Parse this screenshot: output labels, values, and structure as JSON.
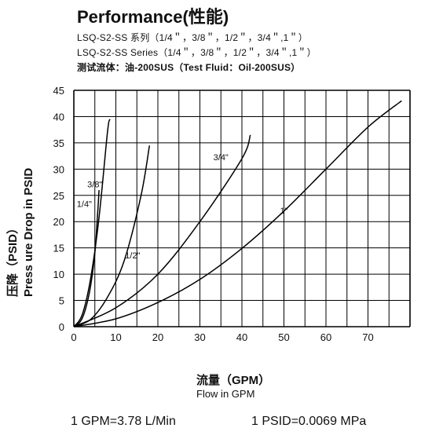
{
  "title": "Performance(性能)",
  "subtitle_lines": [
    "LSQ-S2-SS 系列（1/4＂，3/8＂，1/2＂，3/4＂,1＂）",
    "LSQ-S2-SS Series（1/4＂，3/8＂，1/2＂，3/4＂,1＂）",
    "测试流体：油-200SUS（Test Fluid：Oil-200SUS）"
  ],
  "y_axis_label": {
    "line1": "压降（PSID）",
    "line2": "Press ure Drop in PSID"
  },
  "x_axis_label": {
    "line1": "流量（GPM）",
    "line2": "Flow in GPM"
  },
  "conversions": [
    "1 GPM=3.78 L/Min",
    "1 PSID=0.0069 MPa"
  ],
  "chart_data": {
    "type": "line",
    "xlim": [
      0,
      80
    ],
    "ylim": [
      0,
      45
    ],
    "x_ticks": [
      0,
      10,
      20,
      30,
      40,
      50,
      60,
      70
    ],
    "y_ticks": [
      0,
      5,
      10,
      15,
      20,
      25,
      30,
      35,
      40,
      45
    ],
    "grid": true,
    "series": [
      {
        "name": "1/4\"",
        "points": [
          [
            0,
            0
          ],
          [
            2,
            2.3
          ],
          [
            4,
            9.2
          ],
          [
            6,
            20.8
          ],
          [
            8,
            37
          ],
          [
            8.6,
            39.5
          ]
        ]
      },
      {
        "name": "3/8\"",
        "points": [
          [
            0,
            0
          ],
          [
            1,
            0.5
          ],
          [
            2,
            1.6
          ],
          [
            3,
            4
          ],
          [
            4,
            7.8
          ],
          [
            5,
            14
          ],
          [
            5.7,
            22
          ],
          [
            6,
            26
          ]
        ]
      },
      {
        "name": "1/2\"",
        "points": [
          [
            0,
            0
          ],
          [
            4,
            1.4
          ],
          [
            8,
            5.6
          ],
          [
            12,
            12.6
          ],
          [
            16,
            25
          ],
          [
            18,
            34.5
          ]
        ]
      },
      {
        "name": "3/4\"",
        "points": [
          [
            0,
            0
          ],
          [
            10,
            3.6
          ],
          [
            20,
            10
          ],
          [
            30,
            20
          ],
          [
            40,
            32
          ],
          [
            42,
            36.5
          ]
        ]
      },
      {
        "name": "1\"",
        "points": [
          [
            0,
            0
          ],
          [
            10,
            1.5
          ],
          [
            20,
            4.6
          ],
          [
            30,
            9
          ],
          [
            40,
            14.9
          ],
          [
            50,
            22
          ],
          [
            60,
            30
          ],
          [
            70,
            38
          ],
          [
            78,
            43
          ]
        ]
      }
    ],
    "series_labels": [
      {
        "series": "1/4\"",
        "at": [
          2.5,
          22.8
        ]
      },
      {
        "series": "3/8\"",
        "at": [
          5,
          26.5
        ]
      },
      {
        "series": "1/2\"",
        "at": [
          14,
          13
        ]
      },
      {
        "series": "3/4\"",
        "at": [
          35,
          31.7
        ]
      },
      {
        "series": "1\"",
        "at": [
          50,
          21.5
        ]
      }
    ]
  }
}
